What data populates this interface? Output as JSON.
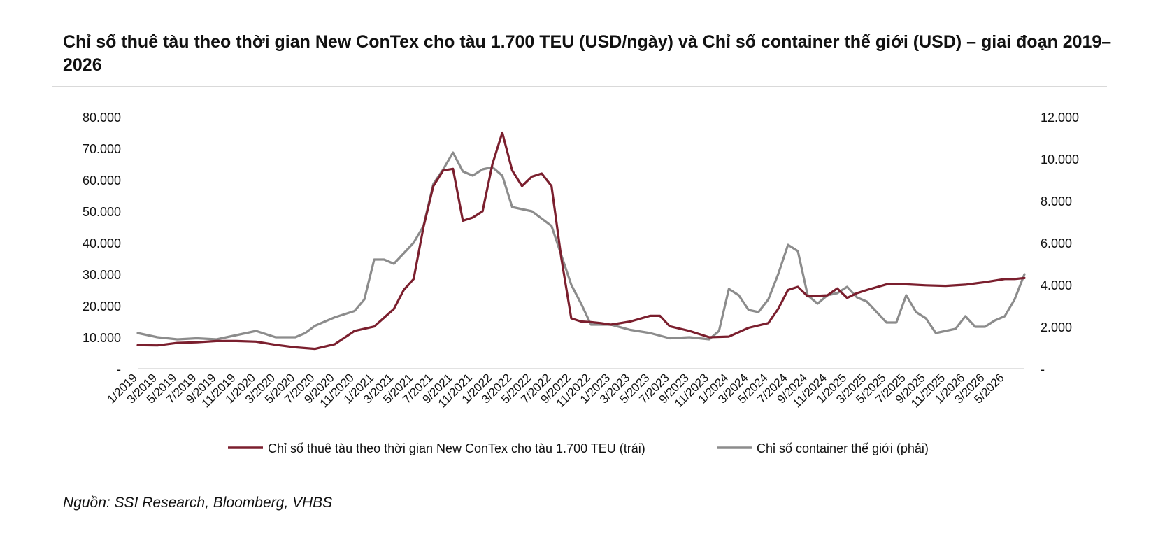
{
  "chart_data": {
    "type": "line",
    "title": "Chỉ số thuê tàu theo thời gian New ConTex cho tàu 1.700 TEU (USD/ngày) và Chỉ số container thế giới (USD) – giai đoạn 2019–2026",
    "x_tick_labels": [
      "1/2019",
      "3/2019",
      "5/2019",
      "7/2019",
      "9/2019",
      "11/2019",
      "1/2020",
      "3/2020",
      "5/2020",
      "7/2020",
      "9/2020",
      "11/2020",
      "1/2021",
      "3/2021",
      "5/2021",
      "7/2021",
      "9/2021",
      "11/2021",
      "1/2022",
      "3/2022",
      "5/2022",
      "7/2022",
      "9/2022",
      "11/2022",
      "1/2023",
      "3/2023",
      "5/2023",
      "7/2023",
      "9/2023",
      "11/2023",
      "1/2024",
      "3/2024",
      "5/2024",
      "7/2024",
      "9/2024",
      "11/2024",
      "1/2025",
      "3/2025",
      "5/2025",
      "7/2025",
      "9/2025",
      "11/2025",
      "1/2026",
      "3/2026",
      "5/2026"
    ],
    "y_left_ticks": [
      "-",
      "10.000",
      "20.000",
      "30.000",
      "40.000",
      "50.000",
      "60.000",
      "70.000",
      "80.000"
    ],
    "y_right_ticks": [
      "-",
      "2.000",
      "4.000",
      "6.000",
      "8.000",
      "10.000",
      "12.000"
    ],
    "ylim_left": [
      0,
      80000
    ],
    "ylim_right": [
      0,
      12000
    ],
    "grid": false,
    "legend_position": "bottom-center",
    "series": [
      {
        "name": "Chỉ số thuê tàu theo thời gian New ConTex cho tàu 1.700 TEU (trái)",
        "axis": "left",
        "color": "#7b1f2e",
        "x": [
          "1/2019",
          "3/2019",
          "5/2019",
          "7/2019",
          "9/2019",
          "11/2019",
          "1/2020",
          "3/2020",
          "5/2020",
          "7/2020",
          "9/2020",
          "11/2020",
          "1/2021",
          "3/2021",
          "4/2021",
          "5/2021",
          "6/2021",
          "7/2021",
          "8/2021",
          "9/2021",
          "10/2021",
          "11/2021",
          "12/2021",
          "1/2022",
          "2/2022",
          "3/2022",
          "4/2022",
          "5/2022",
          "6/2022",
          "7/2022",
          "8/2022",
          "9/2022",
          "10/2022",
          "11/2022",
          "12/2022",
          "1/2023",
          "3/2023",
          "5/2023",
          "6/2023",
          "7/2023",
          "9/2023",
          "11/2023",
          "1/2024",
          "3/2024",
          "5/2024",
          "6/2024",
          "7/2024",
          "8/2024",
          "9/2024",
          "11/2024",
          "12/2024",
          "1/2025",
          "2/2025",
          "3/2025",
          "5/2025",
          "7/2025",
          "9/2025",
          "11/2025",
          "1/2026",
          "3/2026",
          "5/2026",
          "6/2026",
          "7/2026"
        ],
        "values": [
          7500,
          7400,
          8200,
          8400,
          8800,
          8800,
          8600,
          7600,
          6800,
          6300,
          7800,
          12000,
          13400,
          19000,
          25000,
          28500,
          45000,
          58000,
          63000,
          63500,
          47000,
          48000,
          50000,
          65000,
          75000,
          63000,
          58000,
          61000,
          62000,
          58000,
          35000,
          16000,
          15000,
          14800,
          14500,
          14000,
          15000,
          16800,
          16800,
          13500,
          12000,
          10000,
          10200,
          13000,
          14500,
          19000,
          25000,
          26000,
          23000,
          23300,
          25500,
          22500,
          24000,
          25000,
          26800,
          26800,
          26500,
          26300,
          26700,
          27500,
          28500,
          28500,
          28800
        ]
      },
      {
        "name": "Chỉ số container thế giới (phải)",
        "axis": "right",
        "color": "#8c8c8c",
        "x": [
          "1/2019",
          "3/2019",
          "5/2019",
          "7/2019",
          "9/2019",
          "11/2019",
          "1/2020",
          "3/2020",
          "5/2020",
          "6/2020",
          "7/2020",
          "9/2020",
          "11/2020",
          "12/2020",
          "1/2021",
          "2/2021",
          "3/2021",
          "5/2021",
          "6/2021",
          "7/2021",
          "8/2021",
          "9/2021",
          "10/2021",
          "11/2021",
          "12/2021",
          "1/2022",
          "2/2022",
          "3/2022",
          "5/2022",
          "7/2022",
          "9/2022",
          "10/2022",
          "11/2022",
          "1/2023",
          "3/2023",
          "5/2023",
          "7/2023",
          "9/2023",
          "11/2023",
          "12/2023",
          "1/2024",
          "2/2024",
          "3/2024",
          "4/2024",
          "5/2024",
          "6/2024",
          "7/2024",
          "8/2024",
          "9/2024",
          "10/2024",
          "11/2024",
          "12/2024",
          "1/2025",
          "2/2025",
          "3/2025",
          "5/2025",
          "6/2025",
          "7/2025",
          "8/2025",
          "9/2025",
          "10/2025",
          "11/2025",
          "12/2025",
          "1/2026",
          "2/2026",
          "3/2026",
          "4/2026",
          "5/2026",
          "6/2026",
          "7/2026"
        ],
        "values": [
          1700,
          1500,
          1400,
          1450,
          1400,
          1600,
          1800,
          1500,
          1500,
          1700,
          2050,
          2450,
          2750,
          3300,
          5200,
          5200,
          5000,
          6000,
          6800,
          8800,
          9500,
          10300,
          9400,
          9200,
          9500,
          9600,
          9200,
          7700,
          7500,
          6800,
          4000,
          3100,
          2100,
          2100,
          1850,
          1700,
          1450,
          1500,
          1400,
          1800,
          3800,
          3500,
          2800,
          2700,
          3300,
          4500,
          5900,
          5600,
          3500,
          3100,
          3500,
          3600,
          3900,
          3400,
          3200,
          2200,
          2200,
          3500,
          2700,
          2400,
          1700,
          1800,
          1900,
          2500,
          2000,
          2000,
          2300,
          2500,
          3300,
          4500
        ]
      }
    ],
    "source": "Nguồn: SSI Research, Bloomberg, VHBS"
  }
}
